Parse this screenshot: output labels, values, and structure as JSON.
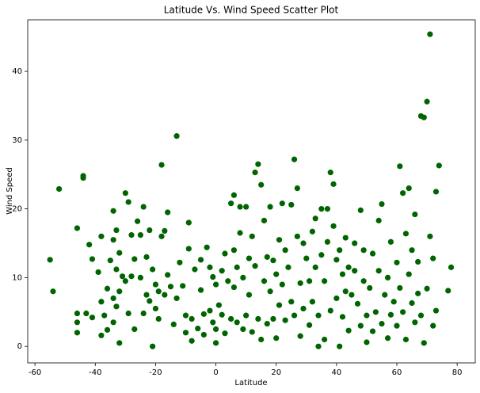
{
  "chart_data": {
    "type": "scatter",
    "title": "Latitude Vs. Wind Speed Scatter Plot",
    "x_label": "Latitude",
    "y_label": "Wind Speed",
    "color": "#006400",
    "xlim": [
      -62.4,
      86
    ],
    "ylim": [
      -2.4,
      47.5
    ],
    "xticks": [
      -60,
      -40,
      -20,
      0,
      20,
      40,
      60,
      80
    ],
    "yticks": [
      0,
      10,
      20,
      30,
      40
    ],
    "x": [
      -55,
      -54,
      -52,
      -46,
      -46,
      -46,
      -46,
      -44,
      -44,
      -43,
      -42,
      -41,
      -41,
      -39,
      -38,
      -38,
      -38,
      -37,
      -36,
      -36,
      -35,
      -34,
      -34,
      -34,
      -34,
      -33,
      -33,
      -33,
      -32,
      -32,
      -32,
      -31,
      -30,
      -30,
      -29,
      -29,
      -28,
      -28,
      -27,
      -27,
      -26,
      -25,
      -25,
      -24,
      -24,
      -23,
      -23,
      -22,
      -22,
      -21,
      -21,
      -20,
      -20,
      -19,
      -19,
      -18,
      -18,
      -17,
      -17,
      -16,
      -16,
      -15,
      -14,
      -13,
      -13,
      -12,
      -11,
      -10,
      -10,
      -9,
      -9,
      -8,
      -8,
      -7,
      -6,
      -5,
      -5,
      -4,
      -4,
      -3,
      -2,
      -2,
      -1,
      -1,
      0,
      0,
      0,
      1,
      2,
      2,
      3,
      3,
      4,
      5,
      5,
      6,
      6,
      6,
      7,
      7,
      8,
      8,
      9,
      9,
      10,
      10,
      11,
      11,
      12,
      12,
      13,
      13,
      14,
      14,
      15,
      15,
      16,
      16,
      17,
      17,
      18,
      18,
      19,
      19,
      20,
      20,
      21,
      21,
      22,
      22,
      23,
      23,
      24,
      25,
      25,
      26,
      26,
      27,
      27,
      28,
      28,
      29,
      29,
      30,
      31,
      31,
      32,
      32,
      33,
      33,
      34,
      34,
      35,
      35,
      36,
      36,
      37,
      37,
      38,
      38,
      39,
      39,
      40,
      40,
      41,
      41,
      42,
      42,
      43,
      43,
      44,
      44,
      45,
      46,
      46,
      47,
      48,
      48,
      49,
      49,
      50,
      50,
      51,
      52,
      52,
      53,
      54,
      54,
      55,
      55,
      56,
      57,
      57,
      58,
      58,
      59,
      60,
      60,
      61,
      61,
      62,
      62,
      63,
      63,
      64,
      64,
      65,
      65,
      66,
      66,
      67,
      67,
      68,
      68,
      69,
      69,
      70,
      70,
      71,
      71,
      72,
      72,
      73,
      73,
      74,
      77,
      78
    ],
    "y": [
      12.6,
      8,
      22.9,
      17.2,
      4.8,
      3.5,
      2,
      24.8,
      24.5,
      4.8,
      14.8,
      12.7,
      4.2,
      10.8,
      16,
      6.5,
      1.6,
      4.5,
      8.4,
      2.4,
      12.5,
      19.7,
      15.5,
      7,
      3.5,
      16.9,
      11.2,
      5.8,
      13.6,
      8,
      0.5,
      10.2,
      22.3,
      9.5,
      21,
      4.8,
      16.2,
      10.2,
      12.7,
      2.5,
      18.2,
      16.2,
      10,
      20.3,
      4.8,
      13,
      7.5,
      6.6,
      16.9,
      0,
      11.2,
      9,
      5.5,
      8,
      4,
      26.4,
      16,
      16.8,
      7.5,
      19.5,
      10.4,
      8.7,
      3.2,
      30.6,
      7,
      12.2,
      8.8,
      4.5,
      2,
      18,
      14.2,
      4,
      0.8,
      11.2,
      2.6,
      12.6,
      8.2,
      4.7,
      1.7,
      14.4,
      11.5,
      5.2,
      10.1,
      3.5,
      9,
      0.5,
      2.5,
      6,
      11,
      4.6,
      13.5,
      1.9,
      9.5,
      20.8,
      4,
      22,
      14,
      8.6,
      11.5,
      3.5,
      20.3,
      16.5,
      10,
      2.5,
      20.3,
      4.5,
      12.8,
      7.5,
      16,
      2.1,
      25.3,
      11.7,
      26.5,
      4,
      23.5,
      1,
      18.3,
      9.5,
      13,
      3.3,
      20.3,
      8,
      12.5,
      4,
      10.5,
      1.2,
      15.5,
      6,
      20.8,
      9,
      14,
      3.8,
      11.5,
      20.6,
      6.5,
      27.2,
      4.5,
      16,
      23,
      9.2,
      1.5,
      15,
      5.5,
      12.8,
      9.5,
      3.1,
      16.7,
      6.5,
      18.6,
      11.5,
      4.5,
      0,
      20,
      13.3,
      9.5,
      1,
      20,
      15.2,
      25.3,
      5.2,
      23.6,
      17.5,
      12.6,
      7,
      0,
      14,
      10.5,
      4.3,
      15.8,
      8,
      11.5,
      2.3,
      7.5,
      15,
      11,
      6.2,
      19.8,
      3,
      14,
      9.5,
      4.5,
      0.6,
      8.5,
      13.5,
      2.2,
      5,
      18.3,
      11,
      20.7,
      3.3,
      7.5,
      10,
      1.2,
      15.2,
      4.6,
      6.5,
      12.2,
      3,
      26.2,
      8.5,
      22.3,
      5,
      16.4,
      1,
      23,
      10.5,
      14,
      6.3,
      19.2,
      3.5,
      12.3,
      7.7,
      33.5,
      4.5,
      33.3,
      0.5,
      35.6,
      8.4,
      45.4,
      16,
      12.8,
      3,
      22.5,
      5.2,
      26.3,
      8.1,
      11.5
    ]
  }
}
